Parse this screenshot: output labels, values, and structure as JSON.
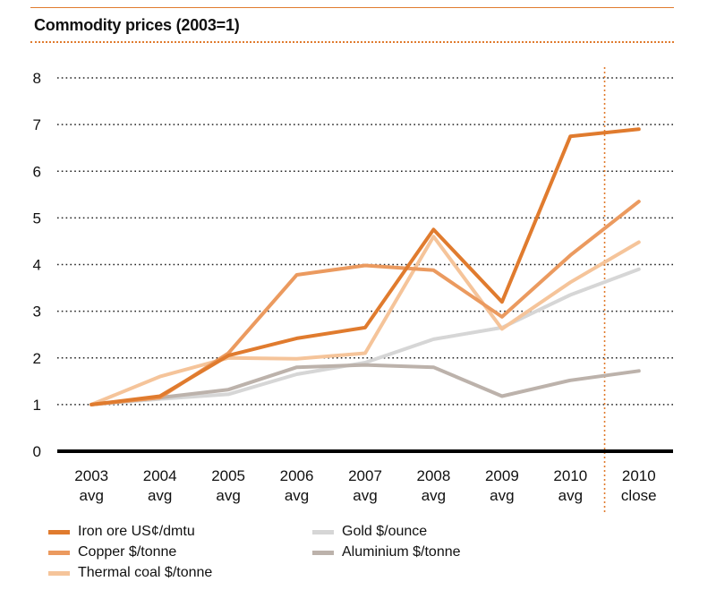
{
  "chart_data": {
    "type": "line",
    "title": "Commodity prices (2003=1)",
    "xlabel": "",
    "ylabel": "",
    "ylim": [
      0,
      8
    ],
    "yticks": [
      0,
      1,
      2,
      3,
      4,
      5,
      6,
      7,
      8
    ],
    "categories": [
      [
        "2003",
        "avg"
      ],
      [
        "2004",
        "avg"
      ],
      [
        "2005",
        "avg"
      ],
      [
        "2006",
        "avg"
      ],
      [
        "2007",
        "avg"
      ],
      [
        "2008",
        "avg"
      ],
      [
        "2009",
        "avg"
      ],
      [
        "2010",
        "avg"
      ],
      [
        "2010",
        "close"
      ]
    ],
    "grid": true,
    "legend_position": "bottom",
    "series": [
      {
        "name": "Gold $/ounce",
        "color": "#d6d6d6",
        "values": [
          1.0,
          1.12,
          1.22,
          1.65,
          1.9,
          2.4,
          2.65,
          3.35,
          3.9
        ]
      },
      {
        "name": "Aluminium $/tonne",
        "color": "#bcb2ab",
        "values": [
          1.0,
          1.15,
          1.32,
          1.8,
          1.85,
          1.8,
          1.18,
          1.52,
          1.72
        ]
      },
      {
        "name": "Thermal coal $/tonne",
        "color": "#f5c49a",
        "values": [
          1.0,
          1.6,
          2.0,
          1.98,
          2.1,
          4.6,
          2.62,
          3.62,
          4.48
        ]
      },
      {
        "name": "Copper $/tonne",
        "color": "#eb9a5f",
        "values": [
          1.0,
          1.15,
          2.1,
          3.78,
          3.98,
          3.88,
          2.88,
          4.2,
          5.35
        ]
      },
      {
        "name": "Iron ore US¢/dmtu",
        "color": "#e07b2e",
        "values": [
          1.0,
          1.18,
          2.05,
          2.42,
          2.65,
          4.75,
          3.2,
          6.75,
          6.9
        ]
      }
    ]
  },
  "legend": [
    {
      "label": "Iron ore US¢/dmtu",
      "color": "#e07b2e"
    },
    {
      "label": "Copper $/tonne",
      "color": "#eb9a5f"
    },
    {
      "label": "Thermal coal $/tonne",
      "color": "#f5c49a"
    },
    {
      "label": "Gold $/ounce",
      "color": "#d6d6d6"
    },
    {
      "label": "Aluminium $/tonne",
      "color": "#bcb2ab"
    }
  ]
}
